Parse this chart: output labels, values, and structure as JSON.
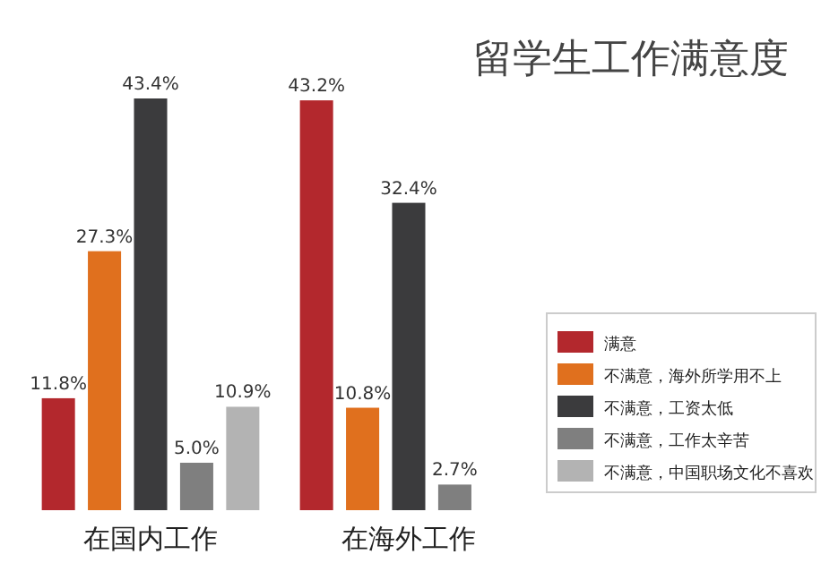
{
  "chart_data": {
    "type": "bar",
    "title": "留学生工作满意度",
    "categories": [
      "在国内工作",
      "在海外工作"
    ],
    "series": [
      {
        "name": "满意",
        "color": "#b3282d",
        "values": [
          11.8,
          43.2
        ],
        "value_labels": [
          "11.8%",
          "43.2%"
        ]
      },
      {
        "name": "不满意，海外所学用不上",
        "color": "#e0701e",
        "values": [
          27.3,
          10.8
        ],
        "value_labels": [
          "27.3%",
          "10.8%"
        ]
      },
      {
        "name": "不满意，工资太低",
        "color": "#3b3b3d",
        "values": [
          43.4,
          32.4
        ],
        "value_labels": [
          "43.4%",
          "32.4%"
        ]
      },
      {
        "name": "不满意，工作太辛苦",
        "color": "#7f7f7f",
        "values": [
          5.0,
          2.7
        ],
        "value_labels": [
          "5.0%",
          "2.7%"
        ]
      },
      {
        "name": "不满意，中国职场文化不喜欢",
        "color": "#b3b3b3",
        "values": [
          10.9,
          null
        ],
        "value_labels": [
          "10.9%",
          null
        ]
      }
    ],
    "legend": "right"
  }
}
